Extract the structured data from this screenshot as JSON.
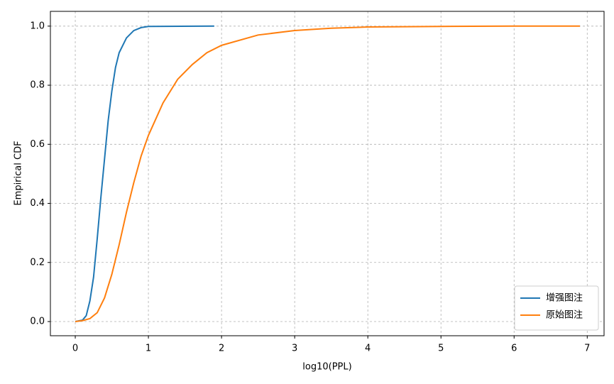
{
  "chart_data": {
    "type": "line",
    "xlabel": "log10(PPL)",
    "ylabel": "Empirical CDF",
    "xlim": [
      -0.34,
      7.23
    ],
    "ylim": [
      -0.048,
      1.05
    ],
    "xticks": [
      0,
      1,
      2,
      3,
      4,
      5,
      6,
      7
    ],
    "yticks": [
      {
        "value": 0,
        "label": "0.0"
      },
      {
        "value": 0.2,
        "label": "0.2"
      },
      {
        "value": 0.4,
        "label": "0.4"
      },
      {
        "value": 0.6,
        "label": "0.6"
      },
      {
        "value": 0.8,
        "label": "0.8"
      },
      {
        "value": 1,
        "label": "1.0"
      }
    ],
    "grid": true,
    "legend": "lower right",
    "series": [
      {
        "name": "增强图注",
        "color": "#1f77b4",
        "x": [
          0,
          0.1,
          0.15,
          0.2,
          0.25,
          0.3,
          0.35,
          0.4,
          0.45,
          0.5,
          0.55,
          0.6,
          0.7,
          0.8,
          0.9,
          1.0,
          1.9
        ],
        "values": [
          0,
          0.005,
          0.02,
          0.07,
          0.15,
          0.28,
          0.42,
          0.55,
          0.68,
          0.78,
          0.86,
          0.91,
          0.96,
          0.985,
          0.995,
          0.999,
          1.0
        ]
      },
      {
        "name": "原始图注",
        "color": "#ff7f0e",
        "x": [
          0,
          0.1,
          0.2,
          0.3,
          0.4,
          0.5,
          0.6,
          0.7,
          0.8,
          0.9,
          1.0,
          1.2,
          1.4,
          1.6,
          1.8,
          2.0,
          2.5,
          3.0,
          3.5,
          4.0,
          5.0,
          6.0,
          6.9
        ],
        "values": [
          0,
          0.003,
          0.01,
          0.03,
          0.08,
          0.16,
          0.26,
          0.37,
          0.47,
          0.56,
          0.63,
          0.74,
          0.82,
          0.87,
          0.91,
          0.935,
          0.97,
          0.985,
          0.993,
          0.997,
          0.999,
          1.0,
          1.0
        ]
      }
    ]
  }
}
